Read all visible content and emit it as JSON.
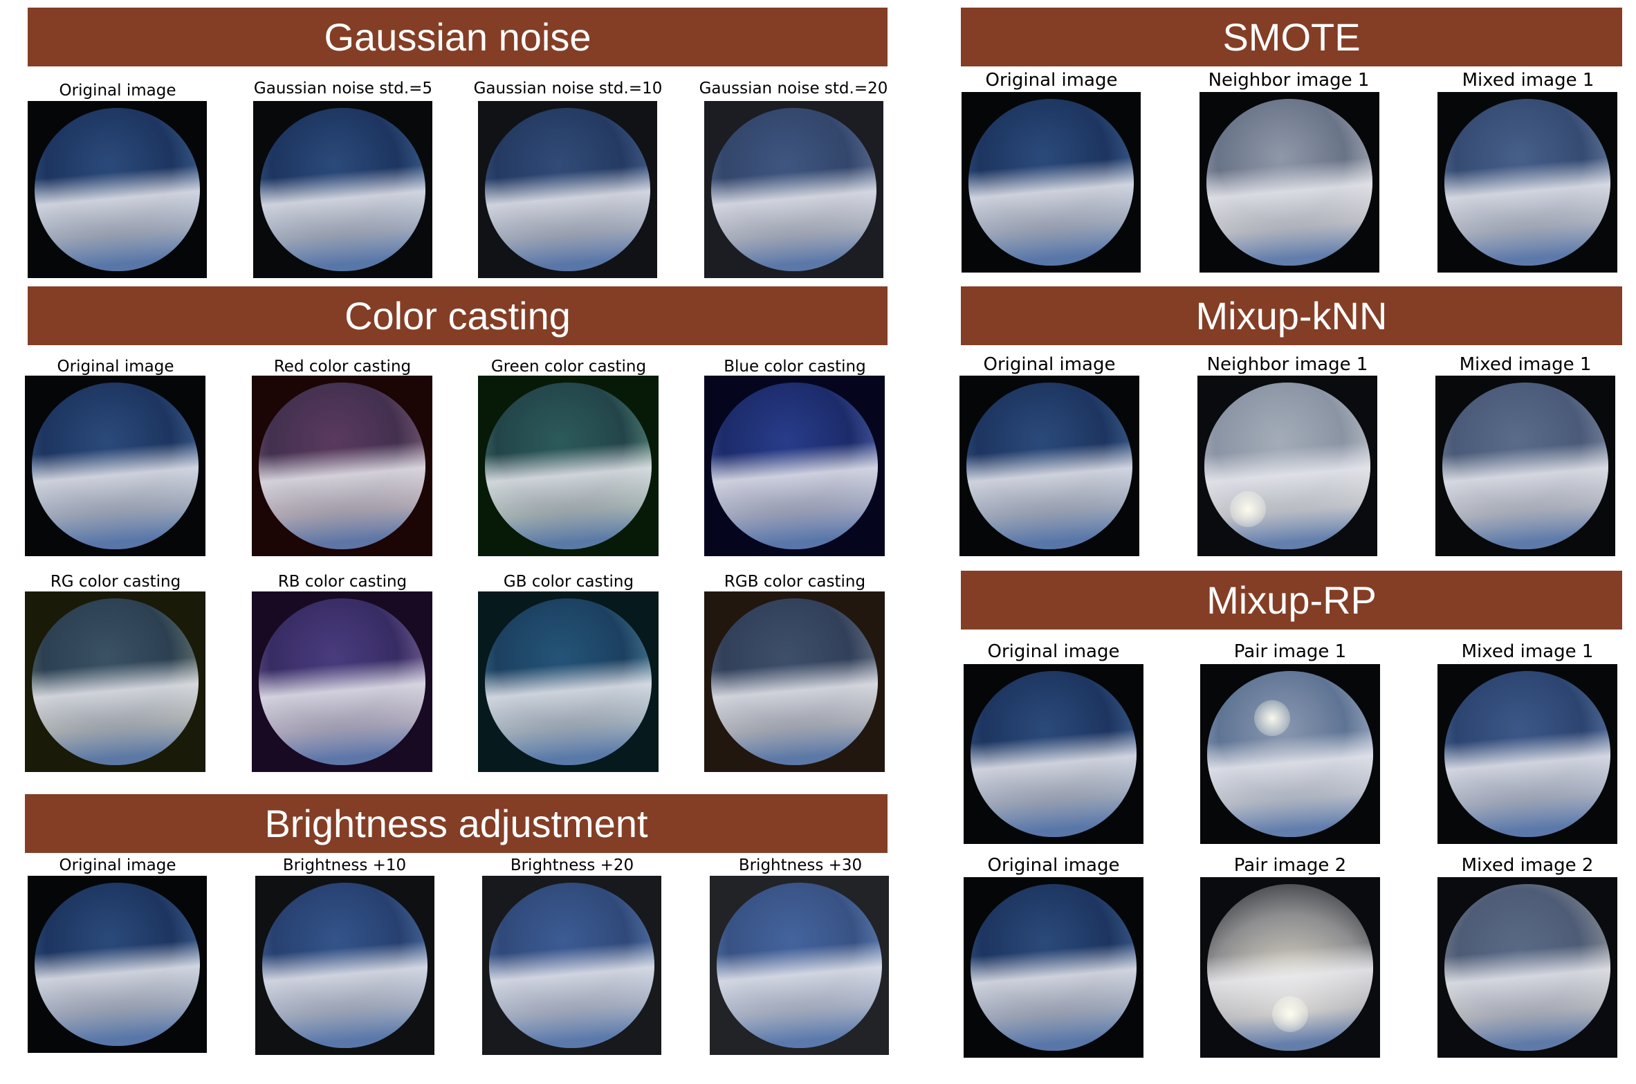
{
  "colors": {
    "banner": "#843e26"
  },
  "sections": {
    "gaussian": {
      "title": "Gaussian noise",
      "captions": [
        "Original image",
        "Gaussian noise std.=5",
        "Gaussian noise std.=10",
        "Gaussian noise std.=20"
      ]
    },
    "color_casting": {
      "title": "Color casting",
      "row1": [
        "Original image",
        "Red color casting",
        "Green color casting",
        "Blue color casting"
      ],
      "row2": [
        "RG color casting",
        "RB color casting",
        "GB color casting",
        "RGB color casting"
      ]
    },
    "brightness": {
      "title": "Brightness adjustment",
      "captions": [
        "Original image",
        "Brightness +10",
        "Brightness +20",
        "Brightness +30"
      ]
    },
    "smote": {
      "title": "SMOTE",
      "captions": [
        "Original image",
        "Neighbor image 1",
        "Mixed image 1"
      ]
    },
    "mixup_knn": {
      "title": "Mixup-kNN",
      "captions": [
        "Original image",
        "Neighbor image 1",
        "Mixed image 1"
      ]
    },
    "mixup_rp": {
      "title": "Mixup-RP",
      "row1": [
        "Original image",
        "Pair image 1",
        "Mixed image 1"
      ],
      "row2": [
        "Original image",
        "Pair image 2",
        "Mixed image 2"
      ]
    }
  }
}
